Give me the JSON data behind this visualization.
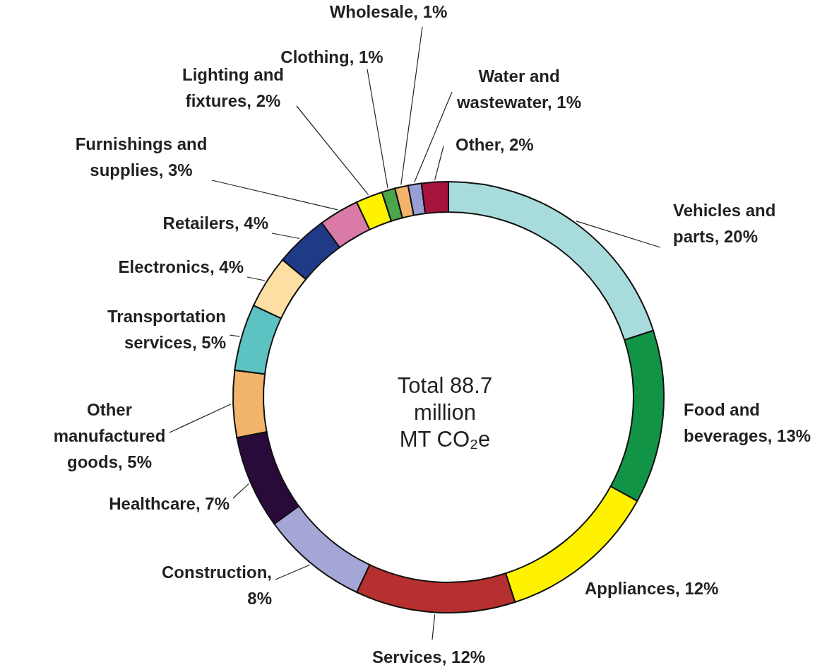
{
  "chart_data": {
    "type": "donut",
    "categories": [
      "Vehicles and parts, 20%",
      "Food and beverages, 13%",
      "Appliances, 12%",
      "Services, 12%",
      "Construction, 8%",
      "Healthcare, 7%",
      "Other manufactured goods, 5%",
      "Transportation services, 5%",
      "Electronics, 4%",
      "Retailers, 4%",
      "Furnishings and supplies, 3%",
      "Lighting and fixtures, 2%",
      "Clothing, 1%",
      "Wholesale, 1%",
      "Water and wastewater, 1%",
      "Other, 2%"
    ],
    "values": [
      20,
      13,
      12,
      12,
      8,
      7,
      5,
      5,
      4,
      4,
      3,
      2,
      1,
      1,
      1,
      2
    ],
    "colors": [
      "#a8dcdc",
      "#129447",
      "#fff200",
      "#b5302e",
      "#a4a6d6",
      "#2a0a3a",
      "#f2b36b",
      "#5cc2c2",
      "#fddfa3",
      "#1f3a87",
      "#d97ba6",
      "#fff200",
      "#4aa64a",
      "#f2b36b",
      "#9a9ed6",
      "#a8133c"
    ],
    "annotations": [
      "Total 88.7\nmillion\nMT CO₂e"
    ]
  }
}
